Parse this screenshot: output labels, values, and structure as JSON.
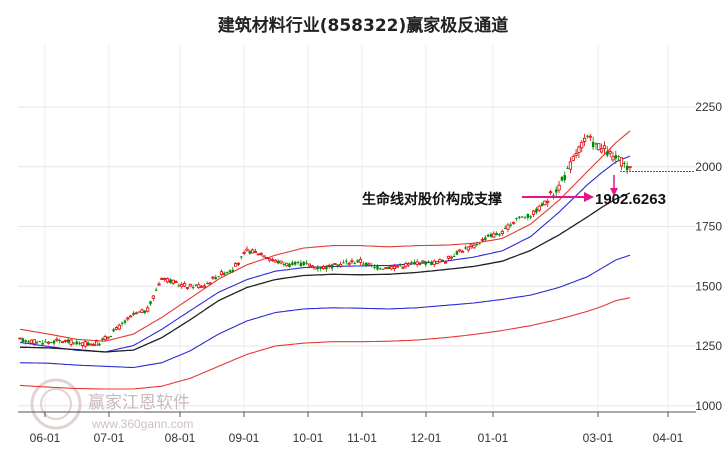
{
  "chart_data": {
    "type": "candlestick",
    "title": "建筑材料行业(858322)赢家极反通道",
    "y_ticks": [
      1000,
      1250,
      1500,
      1750,
      2000,
      2250
    ],
    "ylim": [
      980,
      2290
    ],
    "x_ticks": [
      "06-01",
      "07-01",
      "08-01",
      "09-01",
      "10-01",
      "11-01",
      "12-01",
      "01-01",
      "03-01",
      "04-01"
    ],
    "annotation": {
      "text": "生命线对股价构成支撑",
      "value_label": "1902.6263",
      "value": 1902.6263
    },
    "reference_level": 1980,
    "bands": {
      "outer_upper": [
        [
          0,
          1320
        ],
        [
          10,
          1300
        ],
        [
          20,
          1278
        ],
        [
          30,
          1270
        ],
        [
          40,
          1300
        ],
        [
          50,
          1370
        ],
        [
          60,
          1450
        ],
        [
          70,
          1530
        ],
        [
          80,
          1590
        ],
        [
          90,
          1630
        ],
        [
          100,
          1660
        ],
        [
          110,
          1670
        ],
        [
          120,
          1670
        ],
        [
          130,
          1665
        ],
        [
          140,
          1670
        ],
        [
          150,
          1672
        ],
        [
          160,
          1680
        ],
        [
          170,
          1700
        ],
        [
          180,
          1760
        ],
        [
          190,
          1860
        ],
        [
          200,
          1980
        ],
        [
          205,
          2040
        ],
        [
          210,
          2100
        ],
        [
          215,
          2150
        ]
      ],
      "upper": [
        [
          0,
          1265
        ],
        [
          10,
          1248
        ],
        [
          20,
          1232
        ],
        [
          30,
          1225
        ],
        [
          40,
          1252
        ],
        [
          50,
          1320
        ],
        [
          60,
          1398
        ],
        [
          70,
          1475
        ],
        [
          80,
          1528
        ],
        [
          90,
          1563
        ],
        [
          100,
          1578
        ],
        [
          110,
          1583
        ],
        [
          120,
          1585
        ],
        [
          130,
          1587
        ],
        [
          140,
          1595
        ],
        [
          150,
          1605
        ],
        [
          160,
          1622
        ],
        [
          170,
          1648
        ],
        [
          180,
          1708
        ],
        [
          190,
          1810
        ],
        [
          200,
          1925
        ],
        [
          205,
          1975
        ],
        [
          210,
          2020
        ],
        [
          215,
          2045
        ]
      ],
      "middle": [
        [
          0,
          1245
        ],
        [
          10,
          1242
        ],
        [
          20,
          1235
        ],
        [
          30,
          1225
        ],
        [
          40,
          1233
        ],
        [
          50,
          1285
        ],
        [
          60,
          1360
        ],
        [
          70,
          1440
        ],
        [
          80,
          1495
        ],
        [
          90,
          1528
        ],
        [
          100,
          1545
        ],
        [
          110,
          1550
        ],
        [
          120,
          1548
        ],
        [
          130,
          1550
        ],
        [
          140,
          1558
        ],
        [
          150,
          1570
        ],
        [
          160,
          1583
        ],
        [
          170,
          1605
        ],
        [
          180,
          1650
        ],
        [
          190,
          1715
        ],
        [
          200,
          1790
        ],
        [
          205,
          1830
        ],
        [
          210,
          1865
        ],
        [
          215,
          1890
        ]
      ],
      "lower": [
        [
          0,
          1180
        ],
        [
          10,
          1178
        ],
        [
          20,
          1170
        ],
        [
          30,
          1165
        ],
        [
          40,
          1160
        ],
        [
          50,
          1180
        ],
        [
          60,
          1230
        ],
        [
          70,
          1300
        ],
        [
          80,
          1355
        ],
        [
          90,
          1390
        ],
        [
          100,
          1405
        ],
        [
          110,
          1410
        ],
        [
          120,
          1408
        ],
        [
          130,
          1405
        ],
        [
          140,
          1410
        ],
        [
          150,
          1420
        ],
        [
          160,
          1430
        ],
        [
          170,
          1445
        ],
        [
          180,
          1463
        ],
        [
          190,
          1495
        ],
        [
          200,
          1540
        ],
        [
          205,
          1575
        ],
        [
          210,
          1610
        ],
        [
          215,
          1630
        ]
      ],
      "outer_lower": [
        [
          0,
          1085
        ],
        [
          10,
          1078
        ],
        [
          20,
          1072
        ],
        [
          30,
          1070
        ],
        [
          40,
          1070
        ],
        [
          50,
          1082
        ],
        [
          60,
          1115
        ],
        [
          70,
          1165
        ],
        [
          80,
          1215
        ],
        [
          90,
          1250
        ],
        [
          100,
          1262
        ],
        [
          110,
          1268
        ],
        [
          120,
          1268
        ],
        [
          130,
          1270
        ],
        [
          140,
          1275
        ],
        [
          150,
          1285
        ],
        [
          160,
          1298
        ],
        [
          170,
          1315
        ],
        [
          180,
          1335
        ],
        [
          190,
          1362
        ],
        [
          200,
          1395
        ],
        [
          205,
          1415
        ],
        [
          210,
          1440
        ],
        [
          215,
          1452
        ]
      ]
    },
    "price_path": [
      [
        0,
        1275
      ],
      [
        8,
        1265
      ],
      [
        15,
        1272
      ],
      [
        22,
        1258
      ],
      [
        28,
        1262
      ],
      [
        35,
        1330
      ],
      [
        40,
        1380
      ],
      [
        45,
        1400
      ],
      [
        50,
        1540
      ],
      [
        55,
        1510
      ],
      [
        60,
        1500
      ],
      [
        65,
        1505
      ],
      [
        70,
        1548
      ],
      [
        75,
        1570
      ],
      [
        80,
        1648
      ],
      [
        85,
        1638
      ],
      [
        90,
        1605
      ],
      [
        95,
        1590
      ],
      [
        100,
        1595
      ],
      [
        105,
        1578
      ],
      [
        110,
        1582
      ],
      [
        115,
        1600
      ],
      [
        120,
        1605
      ],
      [
        125,
        1578
      ],
      [
        130,
        1580
      ],
      [
        135,
        1588
      ],
      [
        140,
        1600
      ],
      [
        145,
        1598
      ],
      [
        150,
        1608
      ],
      [
        155,
        1650
      ],
      [
        160,
        1668
      ],
      [
        165,
        1710
      ],
      [
        170,
        1722
      ],
      [
        175,
        1785
      ],
      [
        180,
        1795
      ],
      [
        185,
        1850
      ],
      [
        190,
        1920
      ],
      [
        193,
        1980
      ],
      [
        196,
        2060
      ],
      [
        200,
        2120
      ],
      [
        203,
        2090
      ],
      [
        206,
        2070
      ],
      [
        209,
        2040
      ],
      [
        212,
        2020
      ],
      [
        215,
        1985
      ]
    ]
  },
  "watermark": {
    "brand": "赢家江恩软件",
    "url": "www.360gann.com"
  }
}
